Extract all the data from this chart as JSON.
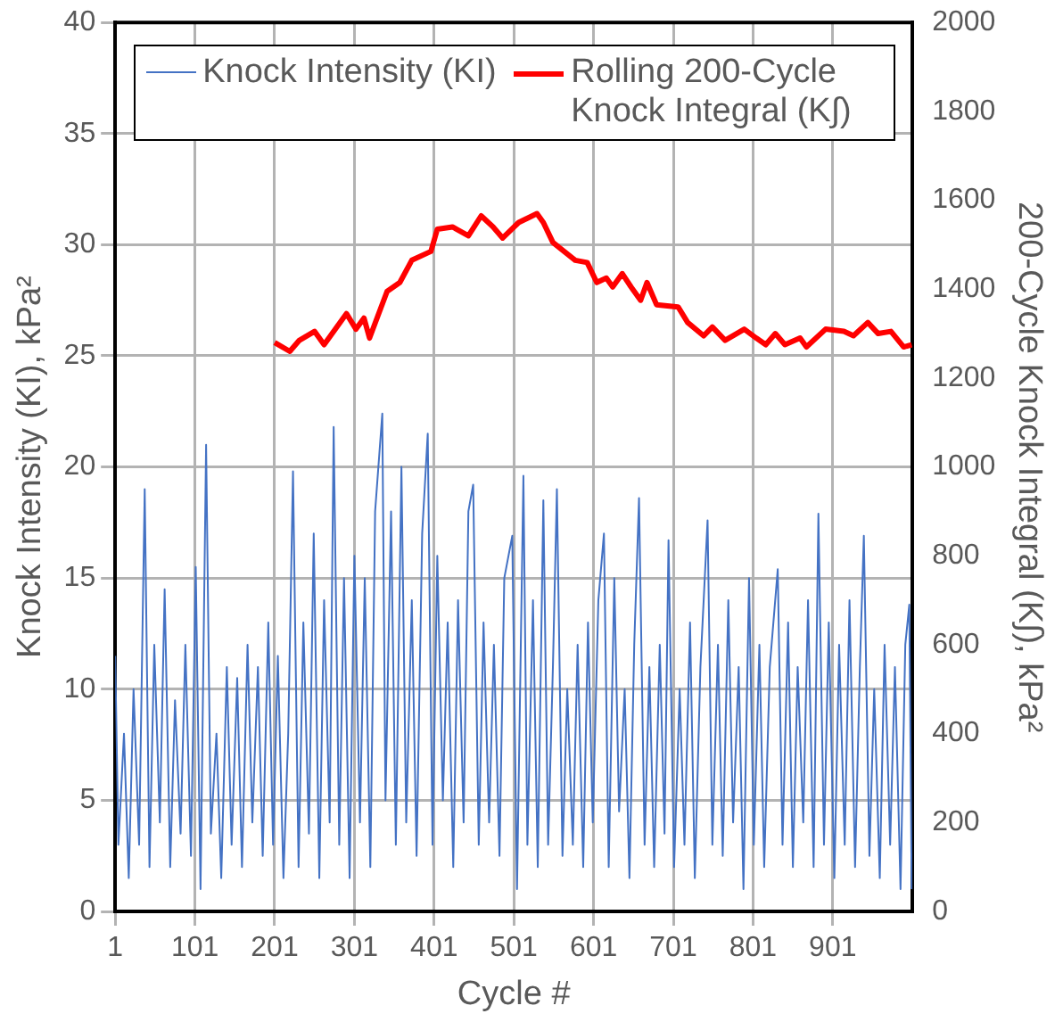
{
  "chart_data": {
    "type": "line",
    "xlabel": "Cycle #",
    "ylabel": "Knock Intensity (KI), kPa²",
    "y2label": "200-Cycle Knock Integral (K∫), kPa²",
    "xlim": [
      1,
      1001
    ],
    "xticks": [
      1,
      101,
      201,
      301,
      401,
      501,
      601,
      701,
      801,
      901
    ],
    "ylim": [
      0,
      40
    ],
    "yticks": [
      0,
      5,
      10,
      15,
      20,
      25,
      30,
      35,
      40
    ],
    "y2lim": [
      0,
      2000
    ],
    "y2ticks": [
      0,
      200,
      400,
      600,
      800,
      1000,
      1200,
      1400,
      1600,
      1800,
      2000
    ],
    "grid": true,
    "legend": "top",
    "marker": "none",
    "line_style": "solid",
    "series": [
      {
        "name": "Knock Intensity (KI)",
        "color": "#4472c4",
        "axis": "y",
        "x": [
          1,
          5,
          12,
          18,
          24,
          31,
          38,
          44,
          50,
          57,
          63,
          70,
          76,
          83,
          89,
          96,
          102,
          108,
          115,
          121,
          128,
          134,
          141,
          147,
          154,
          160,
          167,
          173,
          180,
          186,
          193,
          199,
          205,
          212,
          218,
          224,
          231,
          237,
          244,
          250,
          257,
          263,
          270,
          275,
          282,
          288,
          295,
          301,
          308,
          314,
          321,
          327,
          336,
          340,
          347,
          353,
          360,
          366,
          373,
          379,
          386,
          393,
          399,
          405,
          412,
          418,
          425,
          431,
          438,
          444,
          450,
          457,
          463,
          470,
          476,
          483,
          489,
          499,
          505,
          513,
          518,
          525,
          531,
          538,
          544,
          550,
          555,
          562,
          568,
          575,
          581,
          588,
          594,
          600,
          607,
          614,
          620,
          627,
          633,
          640,
          646,
          652,
          658,
          665,
          671,
          677,
          684,
          690,
          695,
          702,
          709,
          715,
          722,
          728,
          735,
          744,
          750,
          757,
          763,
          770,
          776,
          783,
          789,
          796,
          802,
          809,
          815,
          822,
          832,
          838,
          845,
          851,
          857,
          864,
          870,
          877,
          883,
          890,
          896,
          903,
          909,
          916,
          922,
          929,
          935,
          940,
          947,
          953,
          960,
          966,
          973,
          979,
          986,
          992,
          997,
          1000
        ],
        "values": [
          11.5,
          3,
          8,
          1.5,
          10,
          3,
          19,
          2,
          12,
          4,
          14.5,
          2,
          9.5,
          3.5,
          12,
          2.5,
          15.5,
          1,
          21,
          3.5,
          8,
          1.5,
          11,
          3,
          10.5,
          2,
          12,
          4,
          11,
          2.5,
          13,
          3,
          11.5,
          1.5,
          8,
          19.8,
          2,
          13,
          3.5,
          17,
          1.5,
          14,
          4,
          21.8,
          3,
          15,
          1.5,
          16,
          4,
          15,
          2,
          18,
          22.4,
          5,
          18,
          3,
          20,
          4,
          14,
          2.5,
          17,
          21.5,
          3,
          16,
          5,
          13,
          2,
          14,
          4,
          18,
          19.2,
          3,
          13,
          4,
          12,
          2.5,
          15,
          16.9,
          1,
          19.6,
          3,
          14,
          2,
          18.5,
          3,
          11,
          19,
          2.5,
          10,
          3,
          12,
          2,
          13,
          4,
          14,
          17,
          2,
          15,
          4.5,
          10,
          1.5,
          12,
          18.6,
          3,
          11,
          2,
          12,
          3.5,
          16.7,
          2,
          10,
          3,
          13,
          1.5,
          11,
          17.6,
          3,
          12,
          2.5,
          14,
          4,
          11,
          1,
          15,
          3,
          12,
          2,
          11,
          15.4,
          3,
          13,
          2,
          11,
          4,
          14,
          2,
          17.9,
          3,
          13,
          1.5,
          12,
          3,
          14,
          2,
          11,
          16.9,
          2.5,
          10,
          1.5,
          12,
          3,
          11,
          1,
          12,
          13.8,
          1
        ]
      },
      {
        "name": "Rolling 200-Cycle Knock Integral (K∫)",
        "color": "#ff0000",
        "axis": "y2",
        "x": [
          201,
          220,
          232,
          251,
          263,
          291,
          303,
          313,
          320,
          342,
          358,
          373,
          397,
          405,
          424,
          444,
          460,
          475,
          487,
          507,
          530,
          538,
          550,
          578,
          593,
          605,
          617,
          625,
          637,
          648,
          660,
          668,
          680,
          707,
          719,
          739,
          750,
          766,
          790,
          805,
          817,
          829,
          841,
          860,
          868,
          892,
          915,
          927,
          945,
          958,
          974,
          990,
          1000
        ],
        "values": [
          1280,
          1260,
          1285,
          1305,
          1275,
          1345,
          1310,
          1335,
          1290,
          1395,
          1415,
          1465,
          1485,
          1535,
          1540,
          1520,
          1565,
          1540,
          1515,
          1550,
          1570,
          1550,
          1505,
          1465,
          1460,
          1415,
          1425,
          1405,
          1435,
          1405,
          1375,
          1415,
          1365,
          1360,
          1325,
          1295,
          1315,
          1285,
          1310,
          1290,
          1275,
          1300,
          1275,
          1290,
          1270,
          1310,
          1305,
          1295,
          1325,
          1300,
          1305,
          1270,
          1275
        ]
      }
    ]
  }
}
